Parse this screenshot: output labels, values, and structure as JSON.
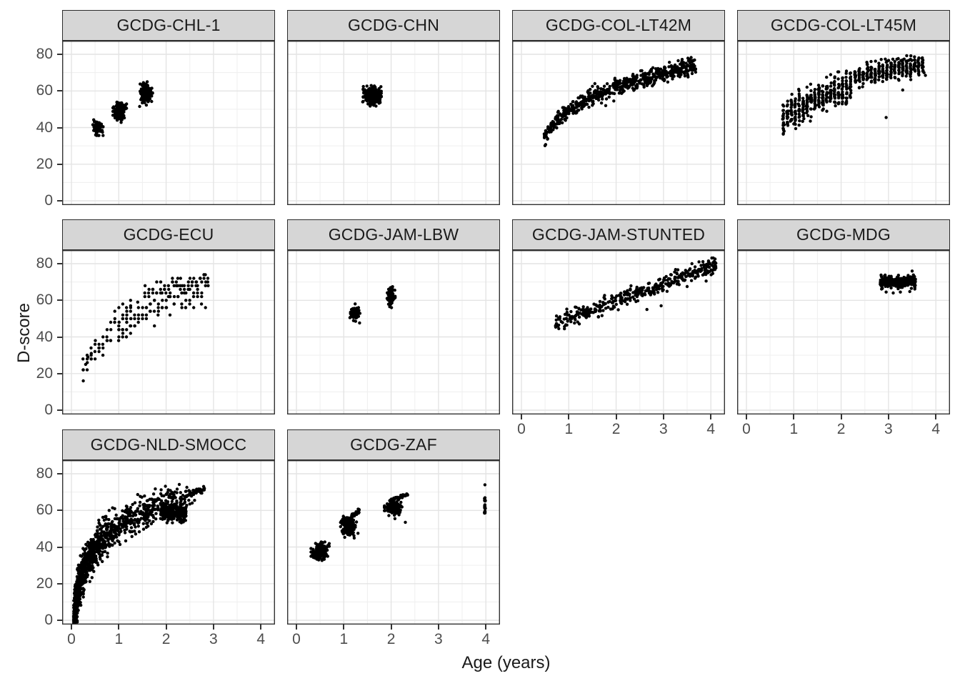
{
  "chart_data": {
    "type": "scatter",
    "faceted": true,
    "xlabel": "Age (years)",
    "ylabel": "D-score",
    "x_ticks": [
      "0",
      "1",
      "2",
      "3",
      "4"
    ],
    "x_tick_values": [
      0,
      1,
      2,
      3,
      4
    ],
    "y_ticks": [
      "0",
      "20",
      "40",
      "60",
      "80"
    ],
    "y_tick_values": [
      0,
      20,
      40,
      60,
      80
    ],
    "xlim": [
      -0.2,
      4.3
    ],
    "ylim": [
      -2.5,
      87.4
    ],
    "grid": {
      "major": true,
      "minor": true
    },
    "legend_position": "none",
    "point_color": "#000000",
    "facets": [
      {
        "label": "GCDG-CHL-1",
        "age_range": [
          0.45,
          1.75
        ],
        "dscore_range": [
          36,
          65
        ],
        "clusters": [
          {
            "kind": "blob",
            "cx": 0.56,
            "cy": 40,
            "sx": 0.045,
            "sy": 1.8,
            "n": 90
          },
          {
            "kind": "blob",
            "cx": 1.02,
            "cy": 49.3,
            "sx": 0.06,
            "sy": 2.2,
            "n": 160
          },
          {
            "kind": "blob",
            "cx": 1.57,
            "cy": 58,
            "sx": 0.06,
            "sy": 2.4,
            "n": 160
          },
          {
            "kind": "pts",
            "points": [
              [
                0.47,
                44.2
              ],
              [
                1.05,
                42.8
              ],
              [
                1.52,
                64.5
              ],
              [
                1.6,
                65
              ],
              [
                1.44,
                51.5
              ]
            ]
          }
        ]
      },
      {
        "label": "GCDG-CHN",
        "age_range": [
          1.35,
          1.9
        ],
        "dscore_range": [
          50,
          64
        ],
        "clusters": [
          {
            "kind": "blob",
            "cx": 1.6,
            "cy": 57.5,
            "sx": 0.08,
            "sy": 2.4,
            "n": 300
          },
          {
            "kind": "pts",
            "points": [
              [
                1.78,
                59
              ],
              [
                1.4,
                54
              ]
            ]
          }
        ]
      },
      {
        "label": "GCDG-COL-LT42M",
        "age_range": [
          0.48,
          3.68
        ],
        "dscore_range": [
          33,
          77
        ],
        "clusters": [
          {
            "kind": "band",
            "a0": 0.48,
            "a1": 3.68,
            "trend": "log",
            "k": 19,
            "c": 48.7,
            "noise": 2.2,
            "n": 620
          },
          {
            "kind": "pts",
            "points": [
              [
                1.5,
                62.5
              ],
              [
                1.55,
                64
              ],
              [
                1.62,
                61.5
              ],
              [
                1.78,
                52
              ],
              [
                1.95,
                54.5
              ],
              [
                3.55,
                77
              ],
              [
                3.6,
                76.5
              ]
            ]
          }
        ]
      },
      {
        "label": "GCDG-COL-LT45M",
        "age_range": [
          0.78,
          3.75
        ],
        "dscore_range": [
          40,
          78
        ],
        "clusters": [
          {
            "kind": "stripes",
            "a0": 0.78,
            "a1": 2.27,
            "step": 0.0833,
            "trend": "log",
            "k": 17,
            "c": 49,
            "noise": 4.2,
            "perStripe": 20
          },
          {
            "kind": "stripes",
            "a0": 2.3,
            "a1": 3.72,
            "step": 0.0833,
            "trend": "log",
            "k": 12,
            "c": 58,
            "noise": 2.8,
            "perStripe": 17
          },
          {
            "kind": "stripes",
            "a0": 2.84,
            "a1": 3.51,
            "step": 0.0833,
            "trend": "flat",
            "b": 77,
            "noise": 0.25,
            "perStripe": 1
          },
          {
            "kind": "pts",
            "points": [
              [
                0.95,
                44
              ],
              [
                1.0,
                42
              ],
              [
                1.3,
                46.5
              ],
              [
                1.35,
                43.5
              ],
              [
                2.95,
                45.5
              ],
              [
                3.3,
                60.5
              ],
              [
                0.8,
                41.5
              ],
              [
                3.75,
                70
              ],
              [
                3.78,
                68.5
              ]
            ]
          }
        ]
      },
      {
        "label": "GCDG-ECU",
        "age_range": [
          0.25,
          2.9
        ],
        "dscore_range": [
          25,
          75
        ],
        "clusters": [
          {
            "kind": "lattice",
            "a0": 0.25,
            "a1": 1.33,
            "step": 0.0833,
            "trend": "log",
            "k": 16,
            "c": 45,
            "noise": 4.5,
            "ystep": 2,
            "perStripe": 4
          },
          {
            "kind": "lattice",
            "a0": 1.0,
            "a1": 2.9,
            "step": 0.0833,
            "trend": "log",
            "k": 17,
            "c": 47,
            "noise": 4.5,
            "ystep": 2,
            "perStripe": 4
          },
          {
            "kind": "lattice",
            "a0": 1.55,
            "a1": 2.9,
            "step": 0.0833,
            "trend": "log",
            "k": 14,
            "c": 57,
            "noise": 2.2,
            "ystep": 2,
            "perStripe": 3
          },
          {
            "kind": "pts",
            "points": [
              [
                0.3,
                25
              ],
              [
                0.35,
                29
              ],
              [
                0.42,
                31
              ],
              [
                1.25,
                57
              ],
              [
                1.4,
                59
              ]
            ]
          }
        ]
      },
      {
        "label": "GCDG-JAM-LBW",
        "age_range": [
          1.1,
          2.1
        ],
        "dscore_range": [
          48,
          67
        ],
        "clusters": [
          {
            "kind": "blob",
            "cx": 1.25,
            "cy": 52.5,
            "sx": 0.045,
            "sy": 2.3,
            "n": 80
          },
          {
            "kind": "blob",
            "cx": 2.0,
            "cy": 62,
            "sx": 0.035,
            "sy": 2.5,
            "n": 80
          },
          {
            "kind": "pts",
            "points": [
              [
                1.13,
                50.5
              ],
              [
                1.32,
                54.5
              ],
              [
                2.0,
                67
              ],
              [
                1.97,
                56.5
              ]
            ]
          }
        ]
      },
      {
        "label": "GCDG-JAM-STUNTED",
        "age_range": [
          0.72,
          4.12
        ],
        "dscore_range": [
          45,
          82
        ],
        "clusters": [
          {
            "kind": "band",
            "a0": 0.72,
            "a1": 4.12,
            "trend": "linear",
            "m": 9.4,
            "b": 40.9,
            "noise": 2.2,
            "n": 400
          },
          {
            "kind": "pts",
            "points": [
              [
                2.65,
                55
              ],
              [
                2.95,
                57
              ],
              [
                3.5,
                67.5
              ],
              [
                3.9,
                70.5
              ],
              [
                3.75,
                81
              ],
              [
                3.95,
                81.5
              ],
              [
                4.05,
                80.5
              ],
              [
                3.6,
                80
              ]
            ]
          }
        ]
      },
      {
        "label": "GCDG-MDG",
        "age_range": [
          2.82,
          3.57
        ],
        "dscore_range": [
          64,
          76
        ],
        "clusters": [
          {
            "kind": "uband",
            "a0": 2.82,
            "a1": 3.57,
            "cy": 70,
            "noise": 1.6,
            "n": 280
          },
          {
            "kind": "pts",
            "points": [
              [
                2.95,
                64.5
              ],
              [
                3.1,
                64
              ],
              [
                3.25,
                64.5
              ],
              [
                3.45,
                64.8
              ],
              [
                3.5,
                76
              ],
              [
                2.87,
                66.5
              ]
            ]
          }
        ]
      },
      {
        "label": "GCDG-NLD-SMOCC",
        "age_range": [
          0.05,
          2.82
        ],
        "dscore_range": [
          2,
          71
        ],
        "clusters": [
          {
            "kind": "band",
            "a0": 0.045,
            "a1": 2.5,
            "trend": "log",
            "k": 18.5,
            "c": 52,
            "noise": [
              6,
              3
            ],
            "n": 1200,
            "xdist": "log"
          },
          {
            "kind": "uband",
            "a0": 1.88,
            "a1": 2.42,
            "cy": 58.5,
            "noise": 2.2,
            "n": 240
          },
          {
            "kind": "band",
            "a0": 2.45,
            "a1": 2.82,
            "trend": "log",
            "k": 18.5,
            "c": 52.5,
            "noise": 1,
            "n": 30
          },
          {
            "kind": "pts",
            "points": [
              [
                2.5,
                63.5
              ],
              [
                2.55,
                64
              ],
              [
                2.6,
                65.5
              ],
              [
                2.35,
                54.5
              ],
              [
                2.42,
                57
              ]
            ]
          }
        ]
      },
      {
        "label": "GCDG-ZAF",
        "age_range": [
          0.38,
          4.0
        ],
        "dscore_range": [
          33,
          74
        ],
        "clusters": [
          {
            "kind": "blob",
            "cx": 0.5,
            "cy": 37.5,
            "sx": 0.08,
            "sy": 2.2,
            "n": 190
          },
          {
            "kind": "blob",
            "cx": 1.1,
            "cy": 51.5,
            "sx": 0.07,
            "sy": 2.2,
            "n": 190
          },
          {
            "kind": "band",
            "a0": 1.14,
            "a1": 1.33,
            "trend": "linear",
            "m": 19,
            "b": 34.5,
            "noise": 0.7,
            "n": 28
          },
          {
            "kind": "blob",
            "cx": 2.05,
            "cy": 61.5,
            "sx": 0.08,
            "sy": 1.8,
            "n": 200
          },
          {
            "kind": "band",
            "a0": 1.97,
            "a1": 2.38,
            "trend": "linear",
            "m": 8.5,
            "b": 48.7,
            "noise": 0.5,
            "n": 45
          },
          {
            "kind": "vline",
            "a": 3.98,
            "d0": 58.5,
            "d1": 63.5,
            "n": 16
          },
          {
            "kind": "vline",
            "a": 3.98,
            "d0": 64.5,
            "d1": 67,
            "n": 8
          },
          {
            "kind": "pts",
            "points": [
              [
                3.98,
                74
              ],
              [
                1.02,
                45.3
              ],
              [
                1.09,
                46.8
              ],
              [
                2.08,
                55.5
              ],
              [
                2.3,
                53.5
              ],
              [
                0.99,
                47.2
              ],
              [
                1.3,
                47.5
              ],
              [
                1.22,
                44.9
              ]
            ]
          }
        ]
      }
    ]
  },
  "colors": {
    "strip_fill": "#d6d6d6",
    "strip_border": "#2b2b2b",
    "strip_text": "#1a1a1a",
    "panel_background": "#ffffff",
    "panel_border": "#333333",
    "grid_major": "#e4e4e4",
    "grid_minor": "#f0f0f0",
    "point": "#000000",
    "axis_text": "#4d4d4d",
    "axis_title_text": "#1a1a1a",
    "tick_mark": "#333333"
  }
}
